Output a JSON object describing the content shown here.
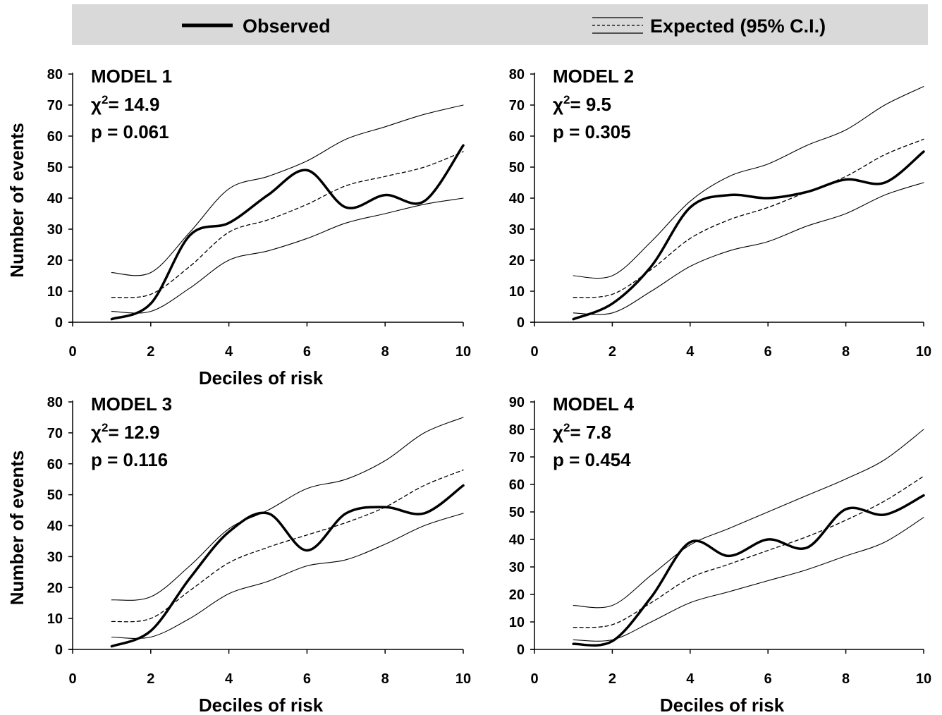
{
  "legend": {
    "observed_label": "Observed",
    "expected_label": "Expected (95% C.I.)",
    "background": "#d9d9d9"
  },
  "chart_data": [
    {
      "type": "line",
      "title": "MODEL 1",
      "chi2_label": "χ",
      "chi2_sup": "2",
      "chi2_value": "= 14.9",
      "p_text": "p = 0.061",
      "xlabel": "Deciles of risk",
      "ylabel": "Number of events",
      "xlim": [
        0,
        10
      ],
      "ylim": [
        0,
        80
      ],
      "xticks": [
        0,
        2,
        4,
        6,
        8,
        10
      ],
      "yticks": [
        0,
        10,
        20,
        30,
        40,
        50,
        60,
        70,
        80
      ],
      "x": [
        1,
        2,
        3,
        4,
        5,
        6,
        7,
        8,
        9,
        10
      ],
      "series": [
        {
          "name": "Observed",
          "style": "observed",
          "values": [
            1,
            6,
            28,
            32,
            41,
            49,
            37,
            41,
            39,
            57
          ]
        },
        {
          "name": "Expected",
          "style": "expected",
          "values": [
            8,
            9,
            18,
            29,
            33,
            38,
            44,
            47,
            50,
            55
          ]
        },
        {
          "name": "Expected upper 95% C.I.",
          "style": "ci",
          "values": [
            16,
            16,
            29,
            43,
            47,
            52,
            59,
            63,
            67,
            70
          ]
        },
        {
          "name": "Expected lower 95% C.I.",
          "style": "ci",
          "values": [
            3.5,
            3.5,
            11,
            20,
            23,
            27,
            32,
            35,
            38,
            40
          ]
        }
      ]
    },
    {
      "type": "line",
      "title": "MODEL 2",
      "chi2_label": "χ",
      "chi2_sup": "2",
      "chi2_value": "= 9.5",
      "p_text": "p = 0.305",
      "xlabel": "",
      "ylabel": "",
      "xlim": [
        0,
        10
      ],
      "ylim": [
        0,
        80
      ],
      "xticks": [
        0,
        2,
        4,
        6,
        8,
        10
      ],
      "yticks": [
        0,
        10,
        20,
        30,
        40,
        50,
        60,
        70,
        80
      ],
      "x": [
        1,
        2,
        3,
        4,
        5,
        6,
        7,
        8,
        9,
        10
      ],
      "series": [
        {
          "name": "Observed",
          "style": "observed",
          "values": [
            1,
            6,
            18,
            37,
            41,
            40,
            42,
            46,
            45,
            55
          ]
        },
        {
          "name": "Expected",
          "style": "expected",
          "values": [
            8,
            9,
            17,
            27,
            33,
            37,
            42,
            47,
            54,
            59
          ]
        },
        {
          "name": "Expected upper 95% C.I.",
          "style": "ci",
          "values": [
            15,
            15,
            26,
            39,
            47,
            51,
            57,
            62,
            70,
            76
          ]
        },
        {
          "name": "Expected lower 95% C.I.",
          "style": "ci",
          "values": [
            3,
            3,
            10,
            18,
            23,
            26,
            31,
            35,
            41,
            45
          ]
        }
      ]
    },
    {
      "type": "line",
      "title": "MODEL 3",
      "chi2_label": "χ",
      "chi2_sup": "2",
      "chi2_value": "= 12.9",
      "p_text": "p = 0.116",
      "xlabel": "Deciles of risk",
      "ylabel": "Number of events",
      "xlim": [
        0,
        10
      ],
      "ylim": [
        0,
        80
      ],
      "xticks": [
        0,
        2,
        4,
        6,
        8,
        10
      ],
      "yticks": [
        0,
        10,
        20,
        30,
        40,
        50,
        60,
        70,
        80
      ],
      "x": [
        1,
        2,
        3,
        4,
        5,
        6,
        7,
        8,
        9,
        10
      ],
      "series": [
        {
          "name": "Observed",
          "style": "observed",
          "values": [
            1,
            6,
            23,
            38,
            44,
            32,
            44,
            46,
            44,
            53
          ]
        },
        {
          "name": "Expected",
          "style": "expected",
          "values": [
            9,
            10,
            19,
            28,
            33,
            37,
            41,
            46,
            53,
            58
          ]
        },
        {
          "name": "Expected upper 95% C.I.",
          "style": "ci",
          "values": [
            16,
            17,
            27,
            39,
            45,
            52,
            55,
            61,
            70,
            75
          ]
        },
        {
          "name": "Expected lower 95% C.I.",
          "style": "ci",
          "values": [
            4,
            4,
            10,
            18,
            22,
            27,
            29,
            34,
            40,
            44
          ]
        }
      ]
    },
    {
      "type": "line",
      "title": "MODEL 4",
      "chi2_label": "χ",
      "chi2_sup": "2",
      "chi2_value": "= 7.8",
      "p_text": "p = 0.454",
      "xlabel": "Deciles of risk",
      "ylabel": "",
      "xlim": [
        0,
        10
      ],
      "ylim": [
        0,
        90
      ],
      "xticks": [
        0,
        2,
        4,
        6,
        8,
        10
      ],
      "yticks": [
        0,
        10,
        20,
        30,
        40,
        50,
        60,
        70,
        80,
        90
      ],
      "x": [
        1,
        2,
        3,
        4,
        5,
        6,
        7,
        8,
        9,
        10
      ],
      "series": [
        {
          "name": "Observed",
          "style": "observed",
          "values": [
            2,
            3,
            19,
            39,
            34,
            40,
            37,
            51,
            49,
            56
          ]
        },
        {
          "name": "Expected",
          "style": "expected",
          "values": [
            8,
            9,
            17,
            26,
            31,
            36,
            41,
            47,
            54,
            63
          ]
        },
        {
          "name": "Expected upper 95% C.I.",
          "style": "ci",
          "values": [
            16,
            16,
            27,
            38,
            44,
            50,
            56,
            62,
            69,
            80
          ]
        },
        {
          "name": "Expected lower 95% C.I.",
          "style": "ci",
          "values": [
            3.5,
            3.5,
            10,
            17,
            21,
            25,
            29,
            34,
            39,
            48
          ]
        }
      ]
    }
  ]
}
